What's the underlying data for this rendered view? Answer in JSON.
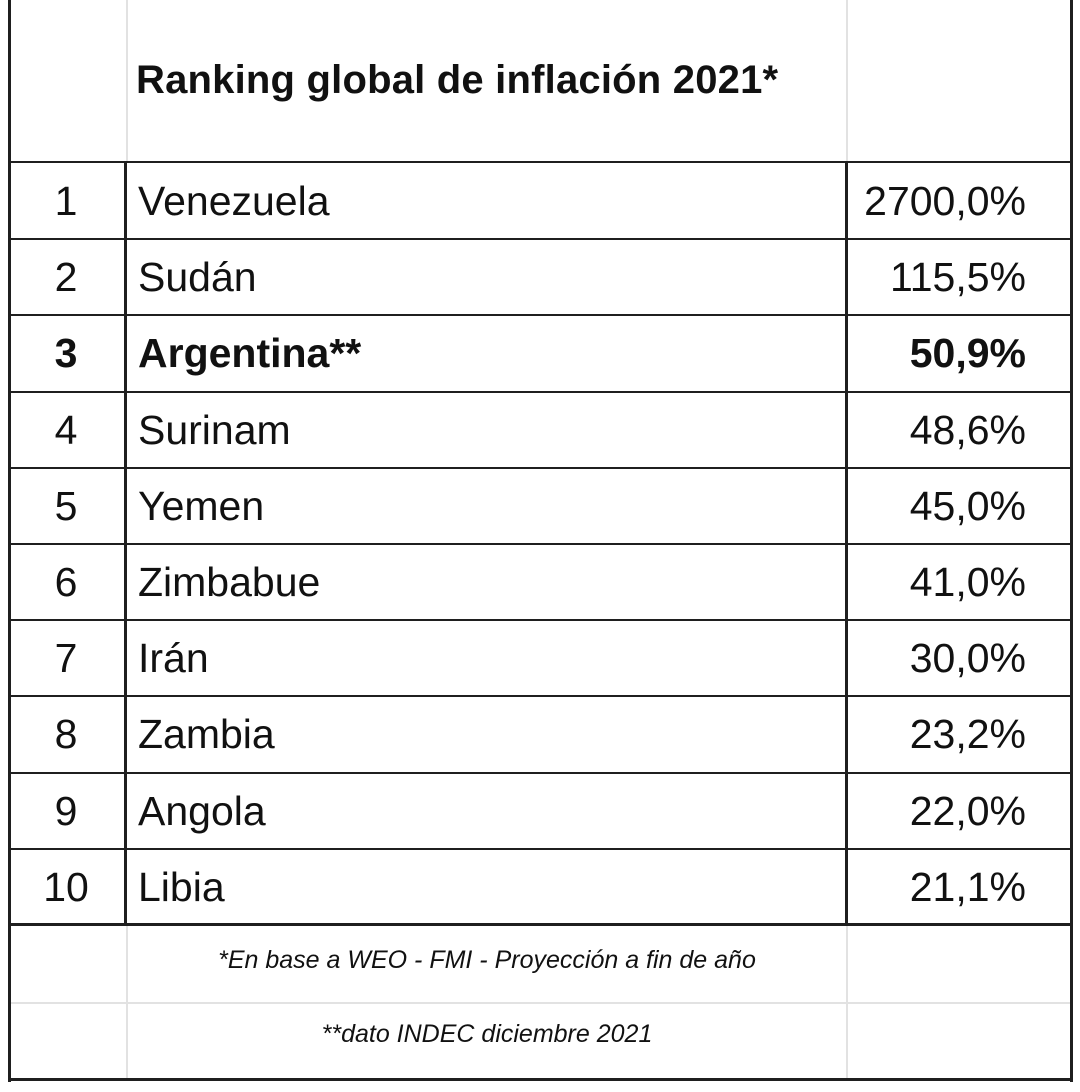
{
  "title": "Ranking global de inflación 2021*",
  "rows": [
    {
      "rank": "1",
      "country": "Venezuela",
      "value": "2700,0%"
    },
    {
      "rank": "2",
      "country": "Sudán",
      "value": "115,5%"
    },
    {
      "rank": "3",
      "country": "Argentina**",
      "value": "50,9%"
    },
    {
      "rank": "4",
      "country": "Surinam",
      "value": "48,6%"
    },
    {
      "rank": "5",
      "country": "Yemen",
      "value": "45,0%"
    },
    {
      "rank": "6",
      "country": "Zimbabue",
      "value": "41,0%"
    },
    {
      "rank": "7",
      "country": "Irán",
      "value": "30,0%"
    },
    {
      "rank": "8",
      "country": "Zambia",
      "value": "23,2%"
    },
    {
      "rank": "9",
      "country": "Angola",
      "value": "22,0%"
    },
    {
      "rank": "10",
      "country": "Libia",
      "value": "21,1%"
    }
  ],
  "highlighted_country": "Argentina**",
  "notes": {
    "source": "*En base a WEO - FMI - Proyección a fin de año",
    "indec": "**dato INDEC diciembre 2021"
  }
}
